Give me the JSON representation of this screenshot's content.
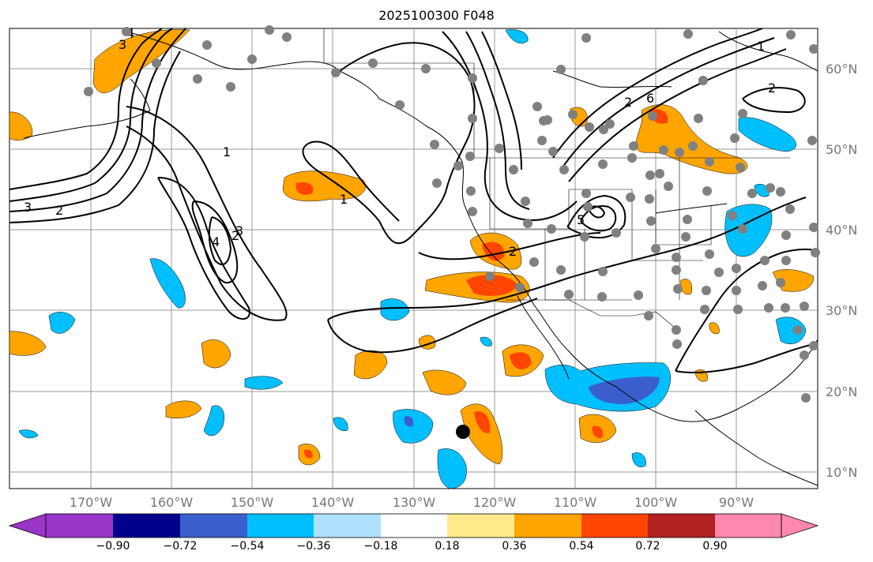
{
  "title": "2025100300 F048",
  "map": {
    "projection": "equirectangular",
    "lon_range_deg": [
      -180,
      -80
    ],
    "lat_range_deg": [
      8,
      65
    ],
    "land_color": "#ffffff",
    "gridlines": true,
    "coastlines": true
  },
  "lat_labels": [
    "60°N",
    "50°N",
    "40°N",
    "30°N",
    "20°N",
    "10°N"
  ],
  "lon_labels": [
    "170°W",
    "160°W",
    "150°W",
    "140°W",
    "130°W",
    "120°W",
    "110°W",
    "100°W",
    "90°W"
  ],
  "colorbar": {
    "colors": [
      "#9a35c9",
      "#00008b",
      "#3a5fcd",
      "#00bfff",
      "#b0e2ff",
      "#ffffff",
      "#ffeb8c",
      "#ffa500",
      "#ff4500",
      "#b22222",
      "#ff88b0"
    ],
    "tick_labels": [
      "−0.90",
      "−0.72",
      "−0.54",
      "−0.36",
      "−0.18",
      "0.18",
      "0.36",
      "0.54",
      "0.72",
      "0.90"
    ],
    "extend": "both"
  },
  "contour_labels": [
    "3",
    "2",
    "1",
    "2",
    "3",
    "4",
    "1",
    "2",
    "3",
    "4",
    "5",
    "6",
    "2",
    "1",
    "2"
  ],
  "station_marker_color": "#808080",
  "storm_marker_color": "#000000"
}
